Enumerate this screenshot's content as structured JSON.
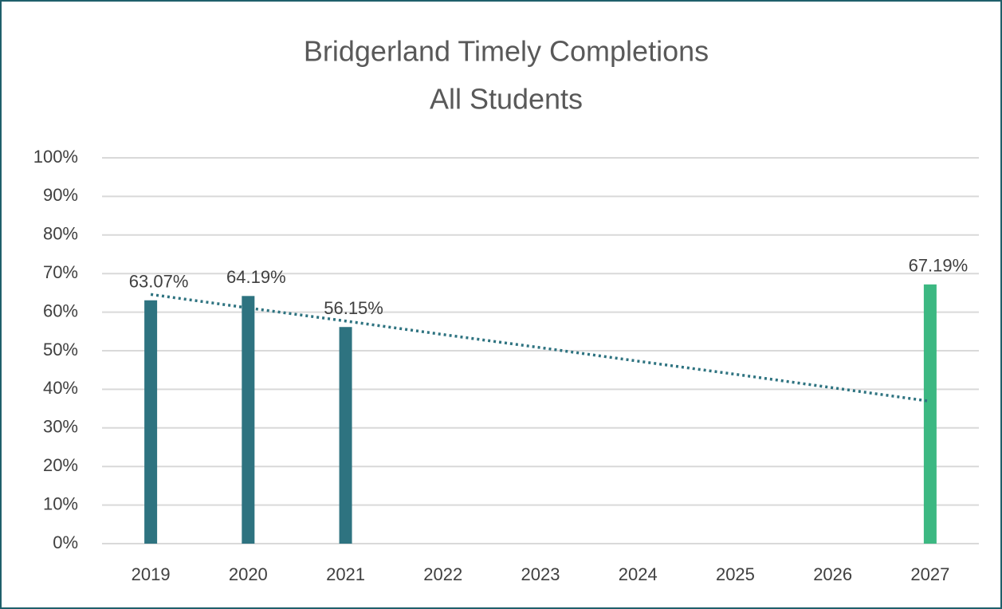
{
  "chart_data": {
    "type": "bar",
    "title": "Bridgerland Timely Completions",
    "subtitle": "All Students",
    "categories": [
      "2019",
      "2020",
      "2021",
      "2022",
      "2023",
      "2024",
      "2025",
      "2026",
      "2027"
    ],
    "values": [
      63.07,
      64.19,
      56.15,
      null,
      null,
      null,
      null,
      null,
      67.19
    ],
    "value_labels": [
      "63.07%",
      "64.19%",
      "56.15%",
      null,
      null,
      null,
      null,
      null,
      "67.19%"
    ],
    "colors": [
      "#2e7380",
      "#2e7380",
      "#2e7380",
      null,
      null,
      null,
      null,
      null,
      "#3cb882"
    ],
    "trendline": {
      "color": "#2e7380",
      "values": [
        64.6,
        61.1,
        57.7,
        54.2,
        50.8,
        47.3,
        43.9,
        40.4,
        36.9
      ]
    },
    "ylim": [
      0,
      100
    ],
    "yticks": [
      {
        "value": 0,
        "label": "0%"
      },
      {
        "value": 10,
        "label": "10%"
      },
      {
        "value": 20,
        "label": "20%"
      },
      {
        "value": 30,
        "label": "30%"
      },
      {
        "value": 40,
        "label": "40%"
      },
      {
        "value": 50,
        "label": "50%"
      },
      {
        "value": 60,
        "label": "60%"
      },
      {
        "value": 70,
        "label": "70%"
      },
      {
        "value": 80,
        "label": "80%"
      },
      {
        "value": 90,
        "label": "90%"
      },
      {
        "value": 100,
        "label": "100%"
      }
    ],
    "grid": true
  }
}
